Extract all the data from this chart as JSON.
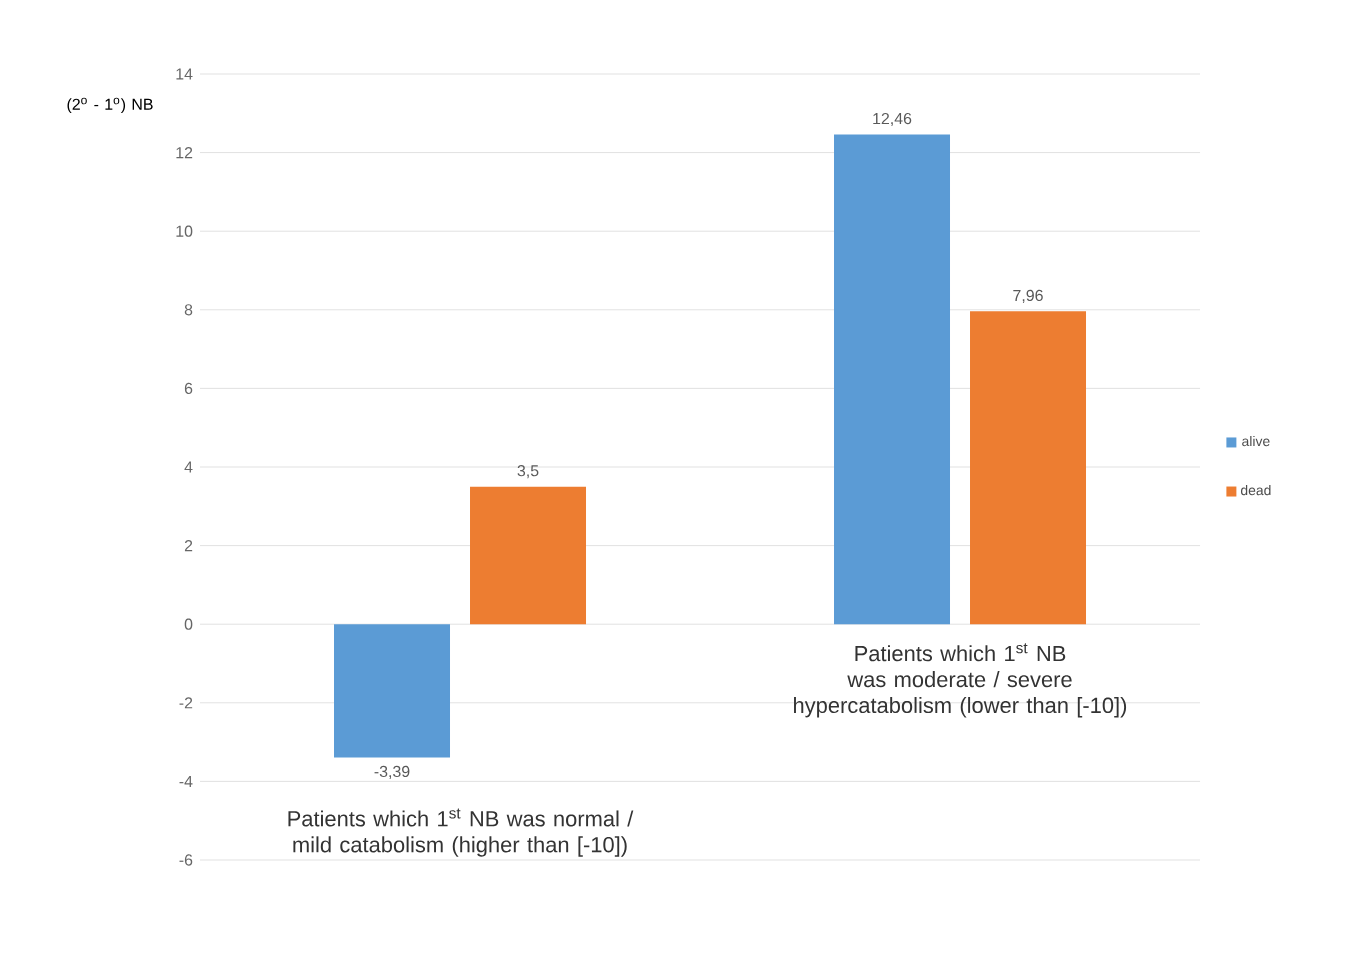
{
  "chart_data": {
    "type": "bar",
    "ylabel": "(2$^{o}$ - 1$^{o}$) NB",
    "categories": [
      "Patients which 1$^{st}$  NB was normal / mild catabolism (higher than [-10])",
      "Patients which 1$^{st}$  NB was moderate / severe hypercatabolism (lower than [-10])"
    ],
    "series": [
      {
        "name": "alive",
        "color": "#5b9bd5",
        "values": [
          -3.39,
          12.46
        ],
        "value_labels": [
          "-3,39",
          "12,46"
        ]
      },
      {
        "name": "dead",
        "color": "#ed7d31",
        "values": [
          3.5,
          7.96
        ],
        "value_labels": [
          "3,5",
          "7,96"
        ]
      }
    ],
    "ylim": [
      -6,
      14
    ],
    "yticks": [
      -6,
      -4,
      -2,
      0,
      2,
      4,
      6,
      8,
      10,
      12,
      14
    ],
    "grid": "y",
    "legend": "right"
  }
}
